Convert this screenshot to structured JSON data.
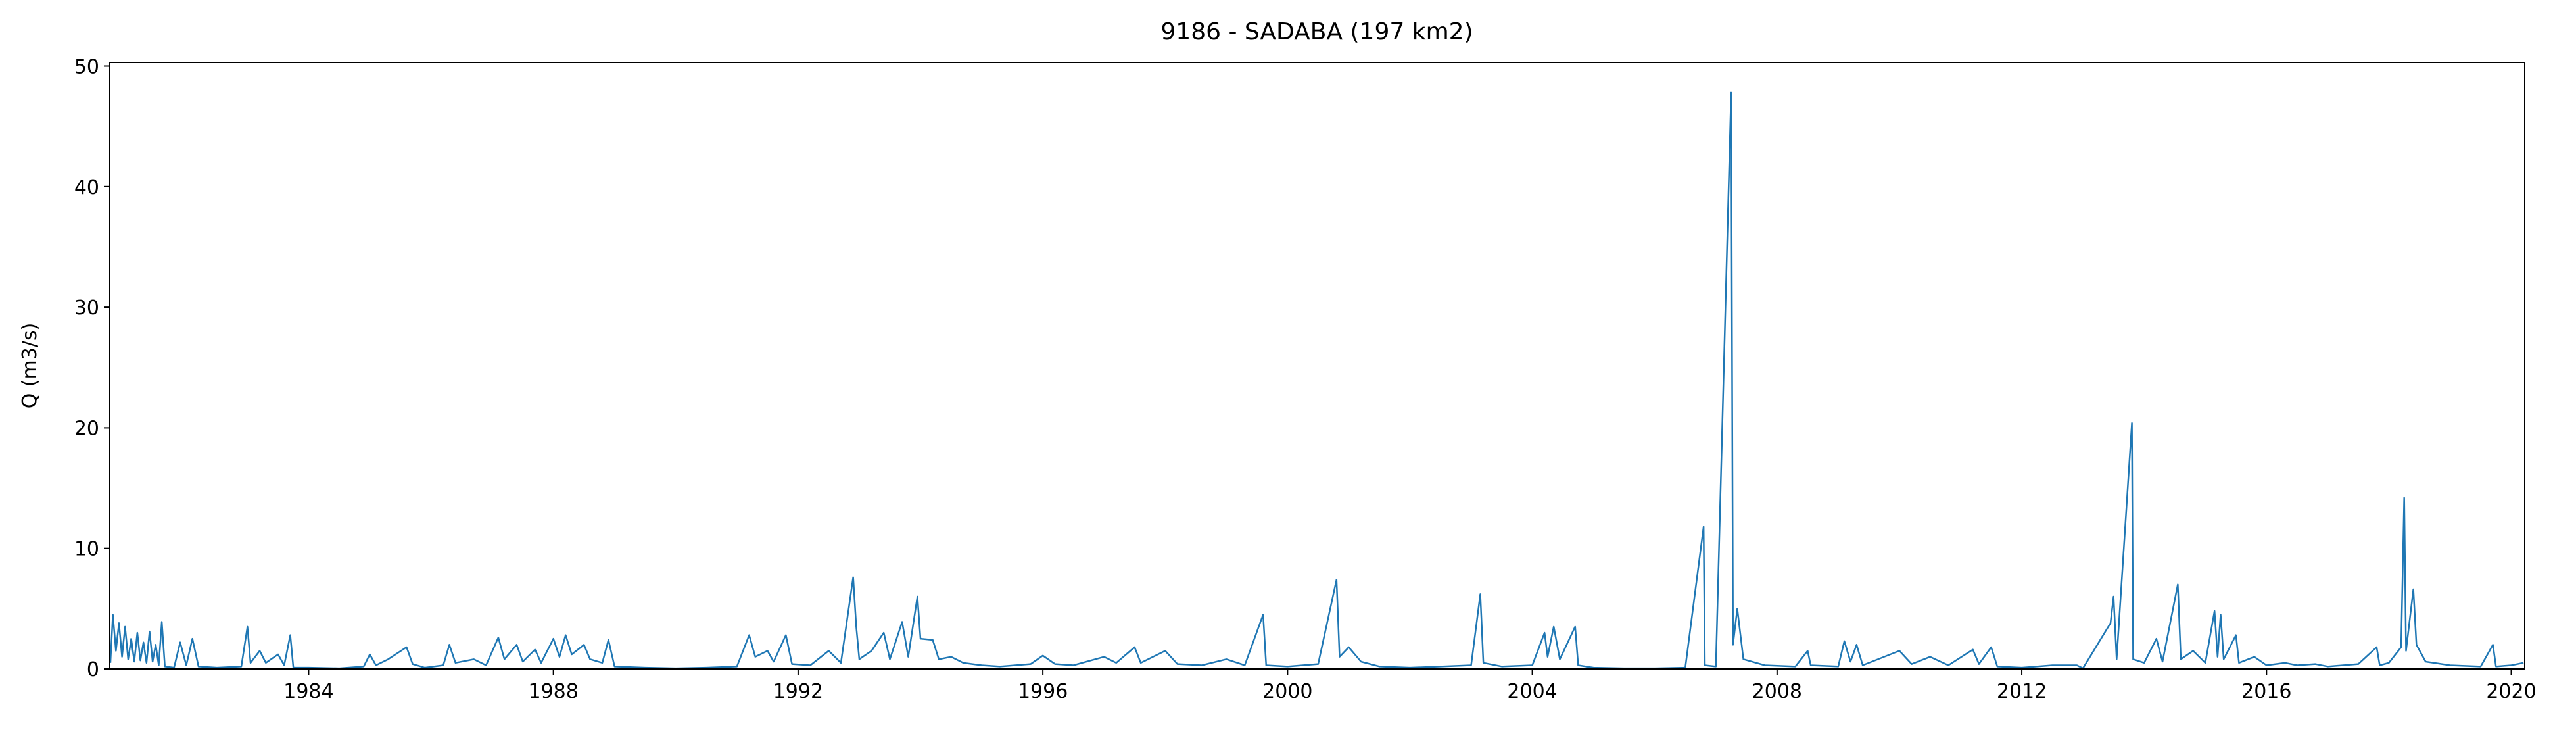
{
  "chart_data": {
    "type": "line",
    "title": "9186 - SADABA (197 km2)",
    "ylabel": "Q (m3/s)",
    "color": "#1f77b4",
    "xlim": [
      1980.75,
      2020.22
    ],
    "ylim": [
      0,
      50.3
    ],
    "xticks": [
      1984,
      1988,
      1992,
      1996,
      2000,
      2004,
      2008,
      2012,
      2016,
      2020
    ],
    "yticks": [
      0,
      10,
      20,
      30,
      40,
      50
    ],
    "x": [
      1980.76,
      1980.8,
      1980.85,
      1980.9,
      1980.95,
      1981.0,
      1981.05,
      1981.1,
      1981.15,
      1981.2,
      1981.25,
      1981.3,
      1981.35,
      1981.4,
      1981.45,
      1981.5,
      1981.55,
      1981.6,
      1981.65,
      1981.8,
      1981.9,
      1982.0,
      1982.1,
      1982.2,
      1982.5,
      1982.9,
      1983.0,
      1983.05,
      1983.2,
      1983.3,
      1983.5,
      1983.6,
      1983.7,
      1983.75,
      1984.0,
      1984.5,
      1984.9,
      1985.0,
      1985.1,
      1985.3,
      1985.6,
      1985.7,
      1985.9,
      1986.2,
      1986.3,
      1986.4,
      1986.7,
      1986.9,
      1987.1,
      1987.2,
      1987.4,
      1987.5,
      1987.7,
      1987.8,
      1988.0,
      1988.1,
      1988.2,
      1988.3,
      1988.5,
      1988.6,
      1988.8,
      1988.9,
      1989.0,
      1989.5,
      1990.0,
      1990.5,
      1991.0,
      1991.2,
      1991.3,
      1991.5,
      1991.6,
      1991.8,
      1991.9,
      1992.2,
      1992.5,
      1992.7,
      1992.9,
      1992.95,
      1993.0,
      1993.2,
      1993.4,
      1993.5,
      1993.7,
      1993.8,
      1993.95,
      1994.0,
      1994.2,
      1994.3,
      1994.5,
      1994.7,
      1995.0,
      1995.3,
      1995.8,
      1996.0,
      1996.2,
      1996.5,
      1997.0,
      1997.2,
      1997.5,
      1997.6,
      1998.0,
      1998.2,
      1998.6,
      1999.0,
      1999.3,
      1999.6,
      1999.65,
      2000.0,
      2000.5,
      2000.8,
      2000.85,
      2001.0,
      2001.2,
      2001.5,
      2002.0,
      2002.5,
      2003.0,
      2003.15,
      2003.2,
      2003.5,
      2004.0,
      2004.2,
      2004.25,
      2004.35,
      2004.45,
      2004.7,
      2004.75,
      2005.0,
      2005.5,
      2006.0,
      2006.5,
      2006.8,
      2006.82,
      2007.0,
      2007.25,
      2007.28,
      2007.35,
      2007.45,
      2007.8,
      2008.3,
      2008.5,
      2008.55,
      2009.0,
      2009.1,
      2009.2,
      2009.3,
      2009.4,
      2010.0,
      2010.2,
      2010.5,
      2010.8,
      2011.2,
      2011.3,
      2011.5,
      2011.6,
      2012.0,
      2012.5,
      2012.9,
      2013.0,
      2013.45,
      2013.5,
      2013.55,
      2013.8,
      2013.82,
      2014.0,
      2014.2,
      2014.3,
      2014.55,
      2014.6,
      2014.8,
      2015.0,
      2015.15,
      2015.2,
      2015.25,
      2015.3,
      2015.5,
      2015.55,
      2015.8,
      2016.0,
      2016.3,
      2016.5,
      2016.8,
      2017.0,
      2017.5,
      2017.8,
      2017.85,
      2018.0,
      2018.2,
      2018.25,
      2018.28,
      2018.4,
      2018.45,
      2018.6,
      2019.0,
      2019.5,
      2019.7,
      2019.75,
      2020.0,
      2020.2
    ],
    "values": [
      0.5,
      4.5,
      1.5,
      3.8,
      1.0,
      3.5,
      0.8,
      2.5,
      0.6,
      3.0,
      0.7,
      2.2,
      0.5,
      3.1,
      0.6,
      2.0,
      0.3,
      3.9,
      0.2,
      0.1,
      2.2,
      0.3,
      2.5,
      0.2,
      0.1,
      0.2,
      3.5,
      0.5,
      1.5,
      0.5,
      1.2,
      0.3,
      2.8,
      0.1,
      0.1,
      0.05,
      0.2,
      1.2,
      0.3,
      0.8,
      1.8,
      0.4,
      0.1,
      0.3,
      2.0,
      0.5,
      0.8,
      0.3,
      2.6,
      0.8,
      2.0,
      0.6,
      1.6,
      0.5,
      2.5,
      1.0,
      2.8,
      1.2,
      2.0,
      0.8,
      0.5,
      2.4,
      0.2,
      0.1,
      0.05,
      0.1,
      0.2,
      2.8,
      1.0,
      1.5,
      0.6,
      2.8,
      0.4,
      0.3,
      1.5,
      0.5,
      7.6,
      3.5,
      0.8,
      1.5,
      3.0,
      0.8,
      3.9,
      1.0,
      6.0,
      2.5,
      2.4,
      0.8,
      1.0,
      0.5,
      0.3,
      0.2,
      0.4,
      1.1,
      0.4,
      0.3,
      1.0,
      0.5,
      1.8,
      0.5,
      1.5,
      0.4,
      0.3,
      0.8,
      0.3,
      4.5,
      0.3,
      0.2,
      0.4,
      7.4,
      1.0,
      1.8,
      0.6,
      0.2,
      0.1,
      0.2,
      0.3,
      6.2,
      0.5,
      0.2,
      0.3,
      3.0,
      1.0,
      3.5,
      0.8,
      3.5,
      0.3,
      0.1,
      0.05,
      0.05,
      0.1,
      11.8,
      0.3,
      0.2,
      47.8,
      2.0,
      5.0,
      0.8,
      0.3,
      0.2,
      1.5,
      0.3,
      0.2,
      2.3,
      0.6,
      2.0,
      0.3,
      1.5,
      0.4,
      1.0,
      0.3,
      1.6,
      0.4,
      1.8,
      0.2,
      0.1,
      0.3,
      0.3,
      0.05,
      3.8,
      6.0,
      0.8,
      20.4,
      0.8,
      0.5,
      2.5,
      0.6,
      7.0,
      0.8,
      1.5,
      0.5,
      4.8,
      1.0,
      4.5,
      0.8,
      2.8,
      0.5,
      1.0,
      0.3,
      0.5,
      0.3,
      0.4,
      0.2,
      0.4,
      1.8,
      0.3,
      0.5,
      1.8,
      14.2,
      1.5,
      6.6,
      2.0,
      0.6,
      0.3,
      0.2,
      2.0,
      0.2,
      0.3,
      0.5
    ]
  }
}
